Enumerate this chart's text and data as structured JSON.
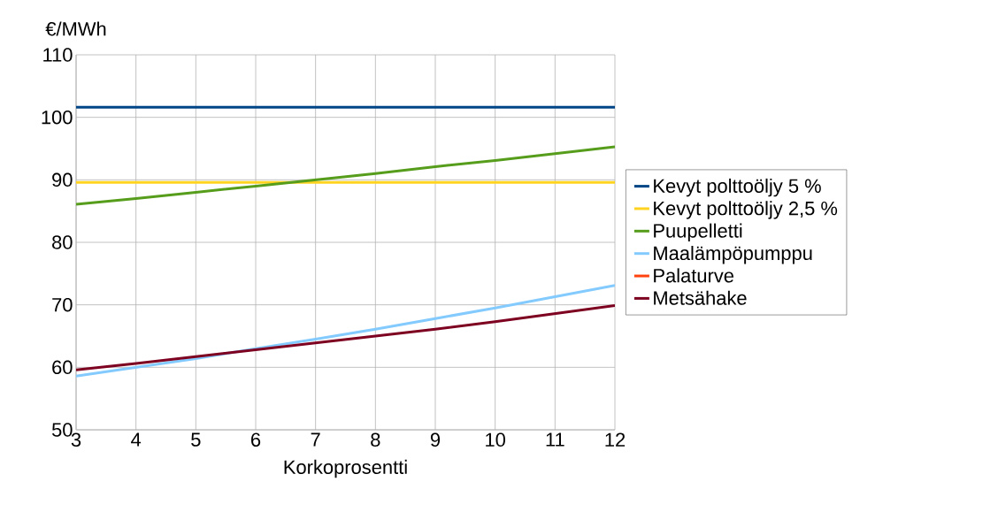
{
  "chart_data": {
    "type": "line",
    "xlabel": "Korkoprosentti",
    "ylabel": "€/MWh",
    "x": [
      3,
      4,
      5,
      6,
      7,
      8,
      9,
      10,
      11,
      12
    ],
    "series": [
      {
        "name": "Kevyt polttoöljy 5 %",
        "color": "#004586",
        "values": [
          101.6,
          101.6,
          101.6,
          101.6,
          101.6,
          101.6,
          101.6,
          101.6,
          101.6,
          101.6
        ]
      },
      {
        "name": "Kevyt polttoöljy 2,5 %",
        "color": "#ffd320",
        "values": [
          89.6,
          89.6,
          89.6,
          89.6,
          89.6,
          89.6,
          89.6,
          89.6,
          89.6,
          89.6
        ]
      },
      {
        "name": "Puupelletti",
        "color": "#579d1c",
        "values": [
          86.1,
          87.0,
          88.0,
          89.0,
          90.0,
          91.0,
          92.1,
          93.1,
          94.2,
          95.3
        ]
      },
      {
        "name": "Maalämpöpumppu",
        "color": "#83caff",
        "values": [
          58.6,
          60.0,
          61.4,
          63.0,
          64.5,
          66.1,
          67.8,
          69.5,
          71.3,
          73.1
        ]
      },
      {
        "name": "Palaturve",
        "color": "#ff420e",
        "values": [
          null,
          null,
          null,
          null,
          null,
          null,
          null,
          null,
          null,
          null
        ]
      },
      {
        "name": "Metsähake",
        "color": "#7e0021",
        "values": [
          59.6,
          60.6,
          61.7,
          62.8,
          63.9,
          65.0,
          66.1,
          67.3,
          68.6,
          69.9
        ]
      }
    ],
    "xlim": [
      3,
      12
    ],
    "ylim": [
      50,
      110
    ],
    "xticks": [
      3,
      4,
      5,
      6,
      7,
      8,
      9,
      10,
      11,
      12
    ],
    "yticks": [
      50,
      60,
      70,
      80,
      90,
      100,
      110
    ],
    "grid": true,
    "legend": "right",
    "marker": "none",
    "line_style": "solid"
  }
}
